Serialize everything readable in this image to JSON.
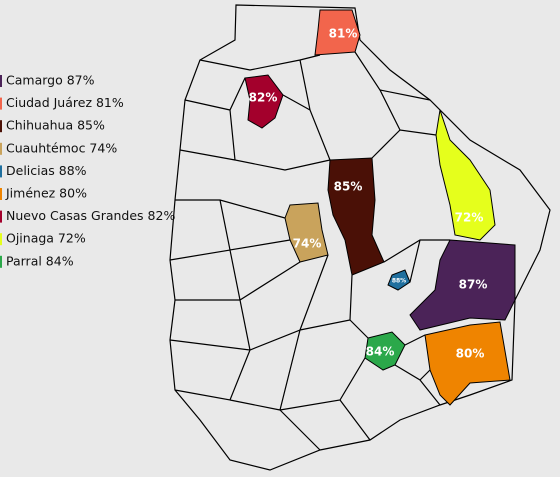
{
  "regions": [
    {
      "legend": "Camargo 87%",
      "label": "87%",
      "color": "#4b2358"
    },
    {
      "legend": "Ciudad Juárez 81%",
      "label": "81%",
      "color": "#f2654c"
    },
    {
      "legend": "Chihuahua 85%",
      "label": "85%",
      "color": "#4a1006"
    },
    {
      "legend": "Cuauhtémoc 74%",
      "label": "74%",
      "color": "#c9a35c"
    },
    {
      "legend": "Delicias 88%",
      "label": "88%",
      "color": "#1f6f9e"
    },
    {
      "legend": "Jiménez 80%",
      "label": "80%",
      "color": "#ef8400"
    },
    {
      "legend": "Nuevo Casas Grandes 82%",
      "label": "82%",
      "color": "#a3002c"
    },
    {
      "legend": "Ojinaga 72%",
      "label": "72%",
      "color": "#e5ff1c"
    },
    {
      "legend": "Parral 84%",
      "label": "84%",
      "color": "#2ba84a"
    }
  ]
}
